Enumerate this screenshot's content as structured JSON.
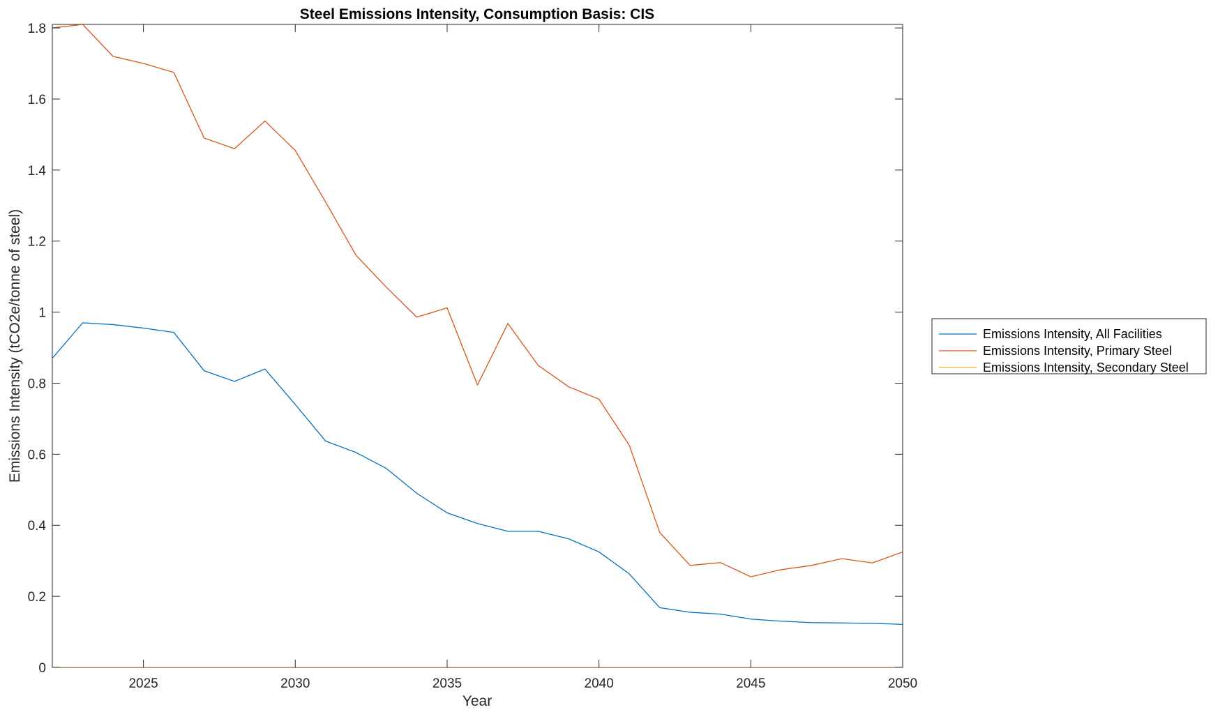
{
  "chart_data": {
    "type": "line",
    "title": "Steel Emissions Intensity, Consumption Basis: CIS",
    "xlabel": "Year",
    "ylabel": "Emissions Intensity (tCO2e/tonne of steel)",
    "xlim": [
      2022,
      2050
    ],
    "ylim": [
      0,
      1.81
    ],
    "xticks": [
      2025,
      2030,
      2035,
      2040,
      2045,
      2050
    ],
    "yticks": [
      0,
      0.2,
      0.4,
      0.6,
      0.8,
      1,
      1.2,
      1.4,
      1.6,
      1.8
    ],
    "xtick_labels": [
      "2025",
      "2030",
      "2035",
      "2040",
      "2045",
      "2050"
    ],
    "ytick_labels": [
      "0",
      "0.2",
      "0.4",
      "0.6",
      "0.8",
      "1",
      "1.2",
      "1.4",
      "1.6",
      "1.8"
    ],
    "grid": false,
    "legend_position": "right",
    "x": [
      2022,
      2023,
      2024,
      2025,
      2026,
      2027,
      2028,
      2029,
      2030,
      2031,
      2032,
      2033,
      2034,
      2035,
      2036,
      2037,
      2038,
      2039,
      2040,
      2041,
      2042,
      2043,
      2044,
      2045,
      2046,
      2047,
      2048,
      2049,
      2050
    ],
    "series": [
      {
        "name": "Emissions Intensity, All Facilities",
        "color": "#0072BD",
        "values": [
          0.87,
          0.97,
          0.965,
          0.955,
          0.943,
          0.835,
          0.805,
          0.84,
          0.74,
          0.637,
          0.605,
          0.56,
          0.49,
          0.435,
          0.405,
          0.383,
          0.383,
          0.362,
          0.325,
          0.263,
          0.168,
          0.155,
          0.15,
          0.136,
          0.13,
          0.126,
          0.125,
          0.124,
          0.121
        ]
      },
      {
        "name": "Emissions Intensity, Primary Steel",
        "color": "#D95319",
        "values": [
          1.8,
          1.81,
          1.72,
          1.7,
          1.675,
          1.49,
          1.46,
          1.538,
          1.455,
          1.31,
          1.16,
          1.07,
          0.986,
          1.012,
          0.795,
          0.968,
          0.85,
          0.79,
          0.755,
          0.625,
          0.38,
          0.287,
          0.295,
          0.255,
          0.275,
          0.287,
          0.306,
          0.294,
          0.325
        ]
      },
      {
        "name": "Emissions Intensity, Secondary Steel",
        "color": "#EDB120",
        "values": [
          0,
          0,
          0,
          0,
          0,
          0,
          0,
          0,
          0,
          0,
          0,
          0,
          0,
          0,
          0,
          0,
          0,
          0,
          0,
          0,
          0,
          0,
          0,
          0,
          0,
          0,
          0,
          0,
          0
        ]
      }
    ]
  }
}
